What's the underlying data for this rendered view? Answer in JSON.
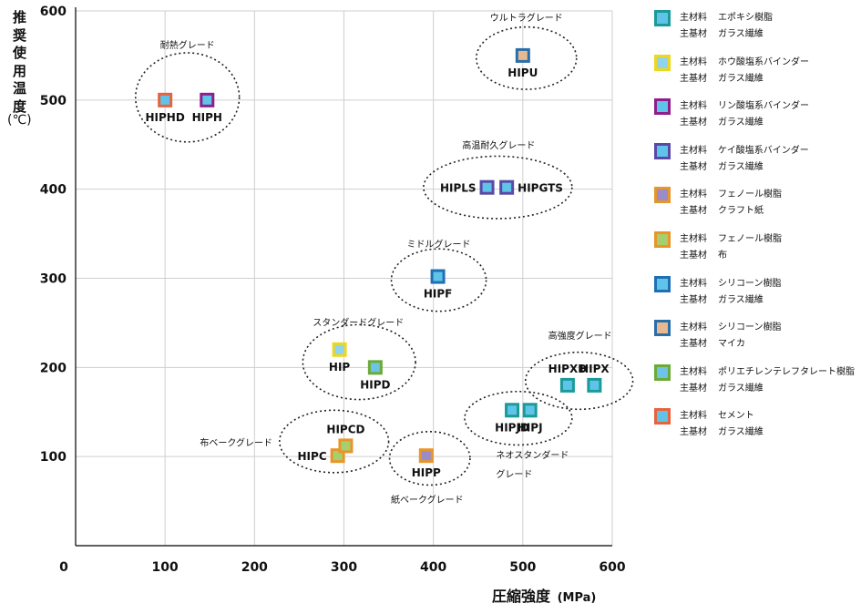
{
  "chart_data": {
    "type": "scatter",
    "xlabel": "圧縮強度",
    "xunit": "(MPa)",
    "ylabel": "推奨使用温度",
    "yunit": "(℃)",
    "xlim": [
      0,
      600
    ],
    "ylim": [
      0,
      600
    ],
    "x_ticks": [
      0,
      100,
      200,
      300,
      400,
      500,
      600
    ],
    "y_ticks": [
      100,
      200,
      300,
      400,
      500,
      600
    ],
    "grid": true,
    "legend_position": "right",
    "materials": [
      {
        "id": "epoxy",
        "line1_key": "主材料",
        "line1_val": "エポキシ樹脂",
        "line2_key": "主基材",
        "line2_val": "ガラス繊維",
        "border": "#1a9a9a",
        "fill": "#5fc4e8"
      },
      {
        "id": "phos-hou",
        "line1_key": "主材料",
        "line1_val": "ホウ酸塩系バインダー",
        "line2_key": "主基材",
        "line2_val": "ガラス繊維",
        "border": "#eed81e",
        "fill": "#8fd3ee"
      },
      {
        "id": "phos-rin",
        "line1_key": "主材料",
        "line1_val": "リン酸塩系バインダー",
        "line2_key": "主基材",
        "line2_val": "ガラス繊維",
        "border": "#8e1e8c",
        "fill": "#5fc4e8"
      },
      {
        "id": "silicate",
        "line1_key": "主材料",
        "line1_val": "ケイ酸塩系バインダー",
        "line2_key": "主基材",
        "line2_val": "ガラス繊維",
        "border": "#5a4aa6",
        "fill": "#5fc4e8"
      },
      {
        "id": "phenol-kraft",
        "line1_key": "主材料",
        "line1_val": "フェノール樹脂",
        "line2_key": "主基材",
        "line2_val": "クラフト紙",
        "border": "#e8952a",
        "fill": "#9a8cc8"
      },
      {
        "id": "phenol-cloth",
        "line1_key": "主材料",
        "line1_val": "フェノール樹脂",
        "line2_key": "主基材",
        "line2_val": "布",
        "border": "#e8952a",
        "fill": "#a8cf6e"
      },
      {
        "id": "silicone-glass",
        "line1_key": "主材料",
        "line1_val": "シリコーン樹脂",
        "line2_key": "主基材",
        "line2_val": "ガラス繊維",
        "border": "#1f6fb5",
        "fill": "#5fc4e8"
      },
      {
        "id": "silicone-mica",
        "line1_key": "主材料",
        "line1_val": "シリコーン樹脂",
        "line2_key": "主基材",
        "line2_val": "マイカ",
        "border": "#2a6ea8",
        "fill": "#e8b890"
      },
      {
        "id": "pet",
        "line1_key": "主材料",
        "line1_val": "ポリエチレンテレフタレート樹脂",
        "line2_key": "主基材",
        "line2_val": "ガラス繊維",
        "border": "#6aab38",
        "fill": "#6fc3e6"
      },
      {
        "id": "cement",
        "line1_key": "主材料",
        "line1_val": "セメント",
        "line2_key": "主基材",
        "line2_val": "ガラス繊維",
        "border": "#e8623c",
        "fill": "#5fc4e8"
      }
    ],
    "points": [
      {
        "label": "HIPHD",
        "x": 100,
        "y": 500,
        "material": "cement",
        "label_pos": "below"
      },
      {
        "label": "HIPH",
        "x": 147,
        "y": 500,
        "material": "phos-rin",
        "label_pos": "below"
      },
      {
        "label": "HIPU",
        "x": 500,
        "y": 550,
        "material": "silicone-mica",
        "label_pos": "below"
      },
      {
        "label": "HIPLS",
        "x": 460,
        "y": 402,
        "material": "silicate",
        "label_pos": "left"
      },
      {
        "label": "HIPGTS",
        "x": 482,
        "y": 402,
        "material": "silicate",
        "label_pos": "right"
      },
      {
        "label": "HIPF",
        "x": 405,
        "y": 302,
        "material": "silicone-glass",
        "label_pos": "below"
      },
      {
        "label": "HIP",
        "x": 295,
        "y": 220,
        "material": "phos-hou",
        "label_pos": "below"
      },
      {
        "label": "HIPD",
        "x": 335,
        "y": 200,
        "material": "pet",
        "label_pos": "below"
      },
      {
        "label": "HIPXD",
        "x": 550,
        "y": 180,
        "material": "epoxy",
        "label_pos": "above"
      },
      {
        "label": "HIPX",
        "x": 580,
        "y": 180,
        "material": "epoxy",
        "label_pos": "above"
      },
      {
        "label": "HIPJD",
        "x": 488,
        "y": 152,
        "material": "epoxy",
        "label_pos": "below"
      },
      {
        "label": "HIPJ",
        "x": 508,
        "y": 152,
        "material": "epoxy",
        "label_pos": "below"
      },
      {
        "label": "HIPC",
        "x": 293,
        "y": 101,
        "material": "phenol-cloth",
        "label_pos": "left"
      },
      {
        "label": "HIPCD",
        "x": 302,
        "y": 112,
        "material": "phenol-cloth",
        "label_pos": "above"
      },
      {
        "label": "HIPP",
        "x": 392,
        "y": 101,
        "material": "phenol-kraft",
        "label_pos": "below"
      }
    ],
    "groups": [
      {
        "label": "耐熱グレード",
        "cx": 125,
        "cy": 503,
        "rx": 58,
        "ry": 50,
        "label_x": 125,
        "label_y": 562,
        "label_anchor": "middle"
      },
      {
        "label": "ウルトラグレード",
        "cx": 504,
        "cy": 547,
        "rx": 56,
        "ry": 35,
        "label_x": 504,
        "label_y": 593,
        "label_anchor": "middle"
      },
      {
        "label": "高温耐久グレード",
        "cx": 472,
        "cy": 402,
        "rx": 83,
        "ry": 35,
        "label_x": 473,
        "label_y": 450,
        "label_anchor": "middle"
      },
      {
        "label": "ミドルグレード",
        "cx": 406,
        "cy": 298,
        "rx": 53,
        "ry": 35,
        "label_x": 406,
        "label_y": 339,
        "label_anchor": "middle"
      },
      {
        "label": "スタンダードグレード",
        "cx": 317,
        "cy": 206,
        "rx": 63,
        "ry": 42,
        "label_x": 316,
        "label_y": 251,
        "label_anchor": "middle"
      },
      {
        "label": "高強度グレード",
        "cx": 563,
        "cy": 185,
        "rx": 60,
        "ry": 32,
        "label_x": 564,
        "label_y": 236,
        "label_anchor": "middle"
      },
      {
        "label": "ネオスタンダード",
        "cx": 495,
        "cy": 143,
        "rx": 60,
        "ry": 30,
        "label_x": 470,
        "label_y": 102,
        "label_anchor": "start"
      },
      {
        "label": "グレード",
        "label_x": 470,
        "label_y": 81,
        "label_anchor": "start"
      },
      {
        "label": "布ベークグレード",
        "cx": 289,
        "cy": 117,
        "rx": 61,
        "ry": 35,
        "label_x": 220,
        "label_y": 116,
        "label_anchor": "end"
      },
      {
        "label": "紙ベークグレード",
        "cx": 396,
        "cy": 98,
        "rx": 45,
        "ry": 30,
        "label_x": 393,
        "label_y": 52,
        "label_anchor": "middle"
      }
    ]
  }
}
